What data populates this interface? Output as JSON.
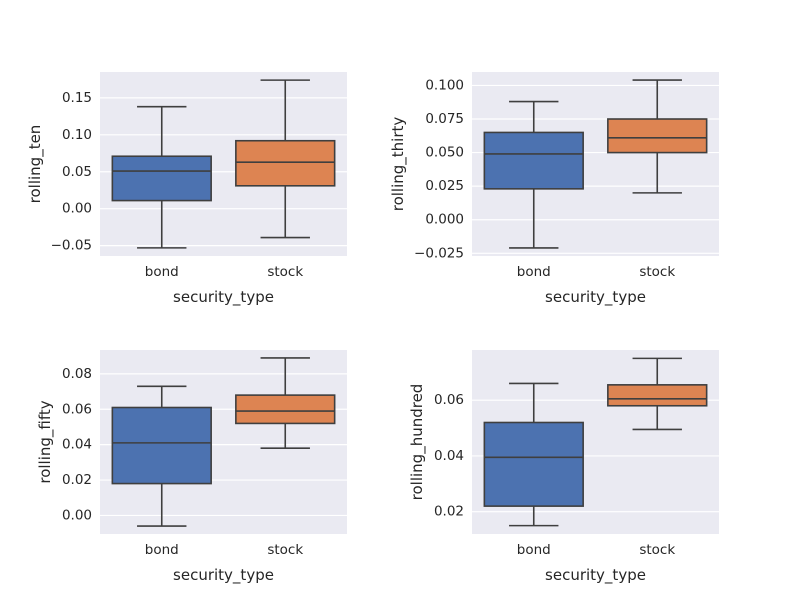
{
  "chart_data": [
    {
      "type": "box",
      "xlabel": "security_type",
      "ylabel": "rolling_ten",
      "categories": [
        "bond",
        "stock"
      ],
      "ylim": [
        -0.064,
        0.185
      ],
      "yticks": [
        -0.05,
        0.0,
        0.05,
        0.1,
        0.15
      ],
      "ytick_labels": [
        "−0.05",
        "0.00",
        "0.05",
        "0.10",
        "0.15"
      ],
      "grid": true,
      "boxes": [
        {
          "category": "bond",
          "whislo": -0.053,
          "q1": 0.011,
          "median": 0.051,
          "q3": 0.071,
          "whishi": 0.138,
          "color": "#4c72b0"
        },
        {
          "category": "stock",
          "whislo": -0.039,
          "q1": 0.031,
          "median": 0.063,
          "q3": 0.092,
          "whishi": 0.174,
          "color": "#dd8452"
        }
      ]
    },
    {
      "type": "box",
      "xlabel": "security_type",
      "ylabel": "rolling_thirty",
      "categories": [
        "bond",
        "stock"
      ],
      "ylim": [
        -0.027,
        0.11
      ],
      "yticks": [
        -0.025,
        0.0,
        0.025,
        0.05,
        0.075,
        0.1
      ],
      "ytick_labels": [
        "−0.025",
        "0.000",
        "0.025",
        "0.050",
        "0.075",
        "0.100"
      ],
      "grid": true,
      "boxes": [
        {
          "category": "bond",
          "whislo": -0.021,
          "q1": 0.023,
          "median": 0.049,
          "q3": 0.065,
          "whishi": 0.088,
          "color": "#4c72b0"
        },
        {
          "category": "stock",
          "whislo": 0.02,
          "q1": 0.05,
          "median": 0.061,
          "q3": 0.075,
          "whishi": 0.104,
          "color": "#dd8452"
        }
      ]
    },
    {
      "type": "box",
      "xlabel": "security_type",
      "ylabel": "rolling_fifty",
      "categories": [
        "bond",
        "stock"
      ],
      "ylim": [
        -0.0105,
        0.0935
      ],
      "yticks": [
        0.0,
        0.02,
        0.04,
        0.06,
        0.08
      ],
      "ytick_labels": [
        "0.00",
        "0.02",
        "0.04",
        "0.06",
        "0.08"
      ],
      "grid": true,
      "boxes": [
        {
          "category": "bond",
          "whislo": -0.006,
          "q1": 0.018,
          "median": 0.041,
          "q3": 0.061,
          "whishi": 0.073,
          "color": "#4c72b0"
        },
        {
          "category": "stock",
          "whislo": 0.038,
          "q1": 0.052,
          "median": 0.059,
          "q3": 0.068,
          "whishi": 0.089,
          "color": "#dd8452"
        }
      ]
    },
    {
      "type": "box",
      "xlabel": "security_type",
      "ylabel": "rolling_hundred",
      "categories": [
        "bond",
        "stock"
      ],
      "ylim": [
        0.012,
        0.078
      ],
      "yticks": [
        0.02,
        0.04,
        0.06
      ],
      "ytick_labels": [
        "0.02",
        "0.04",
        "0.06"
      ],
      "grid": true,
      "boxes": [
        {
          "category": "bond",
          "whislo": 0.015,
          "q1": 0.022,
          "median": 0.0395,
          "q3": 0.052,
          "whishi": 0.066,
          "color": "#4c72b0"
        },
        {
          "category": "stock",
          "whislo": 0.0495,
          "q1": 0.058,
          "median": 0.0605,
          "q3": 0.0655,
          "whishi": 0.075,
          "color": "#dd8452"
        }
      ]
    }
  ]
}
